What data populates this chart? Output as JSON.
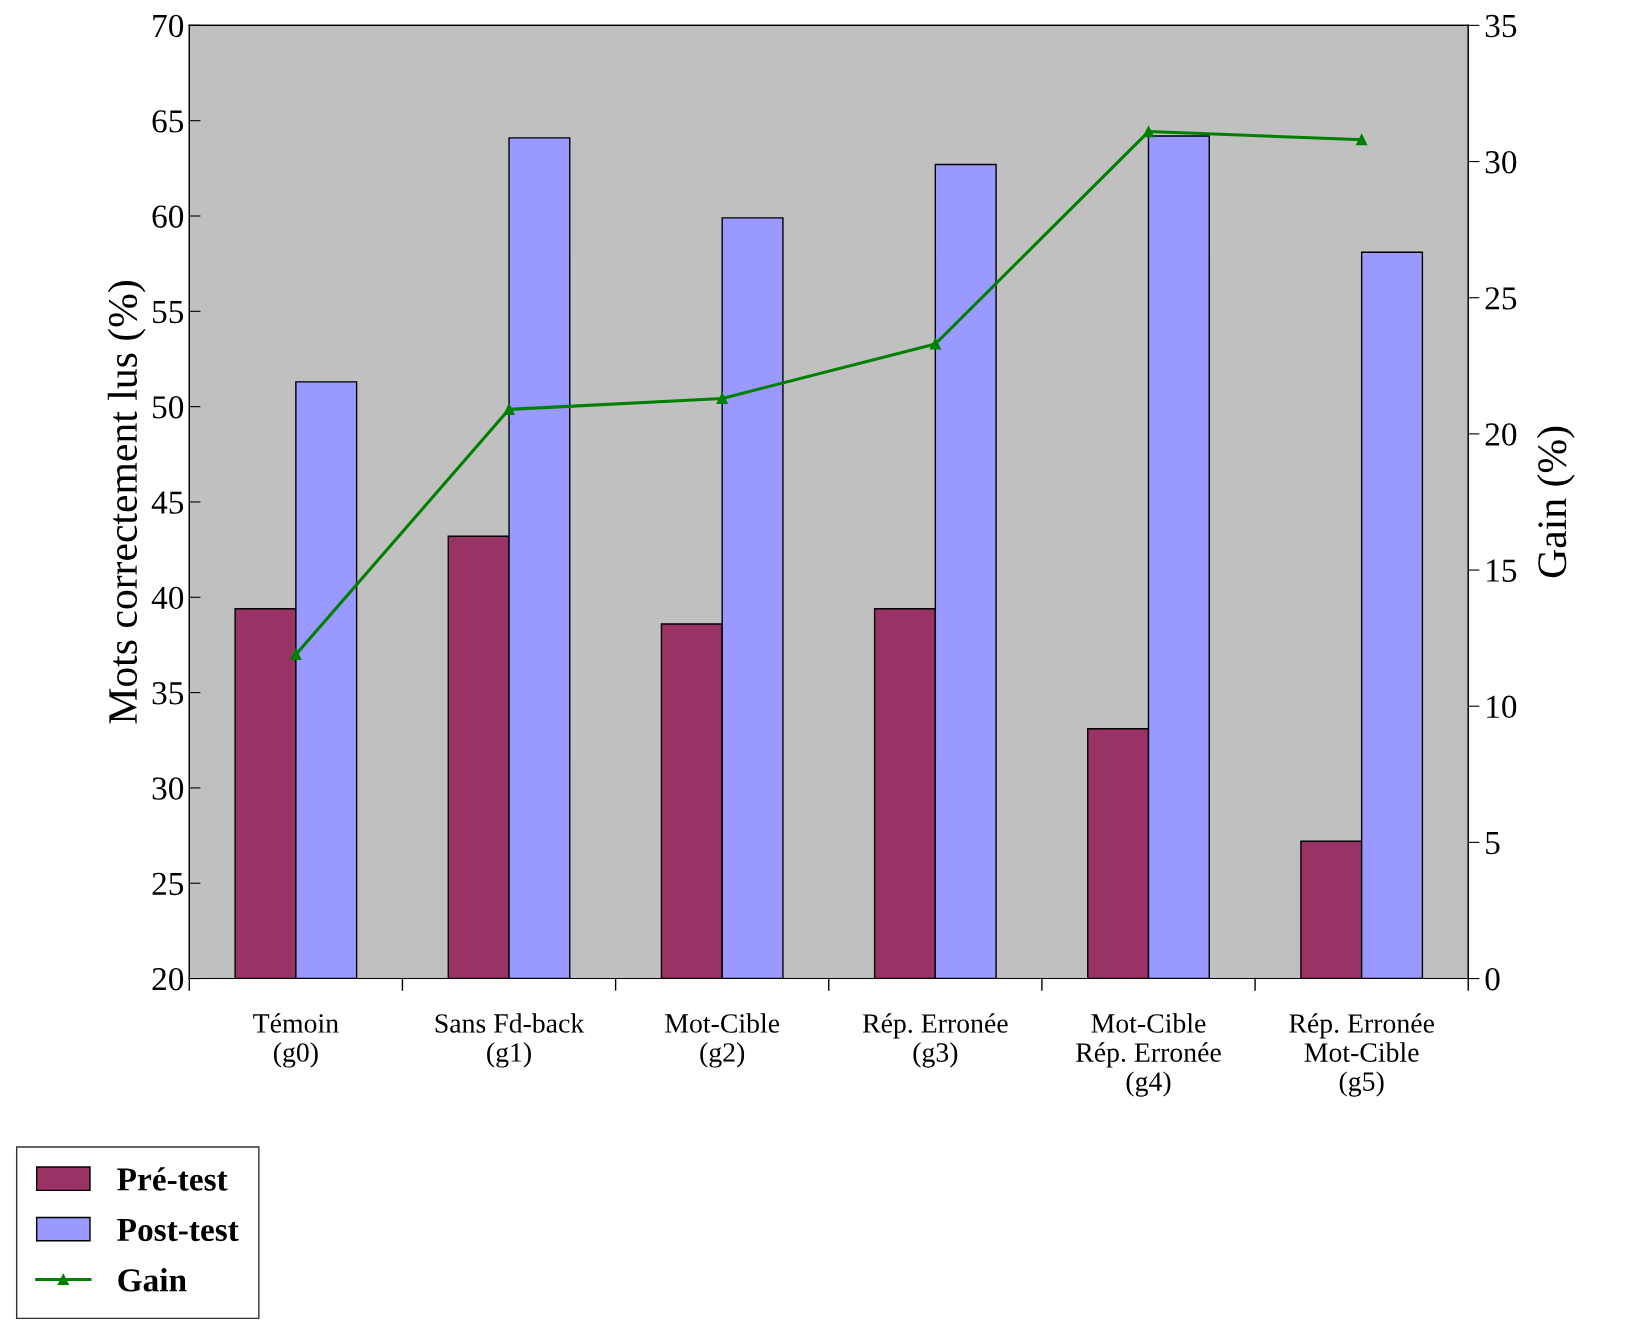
{
  "chart_data": {
    "type": "bar",
    "categories": [
      "Témoin\n(g0)",
      "Sans Fd-back\n(g1)",
      "Mot-Cible\n(g2)",
      "Rép. Erronée\n(g3)",
      "Mot-Cible\nRép. Erronée\n(g4)",
      "Rép. Erronée\nMot-Cible\n(g5)"
    ],
    "series": [
      {
        "name": "Pré-test",
        "color": "#993366",
        "values": [
          39.4,
          43.2,
          38.6,
          39.4,
          33.1,
          27.2
        ]
      },
      {
        "name": "Post-test",
        "color": "#9999ff",
        "values": [
          51.3,
          64.1,
          59.9,
          62.7,
          64.2,
          58.1
        ]
      },
      {
        "name": "Gain",
        "type": "line",
        "axis": "y2",
        "color": "#008000",
        "marker": "triangle",
        "values": [
          11.9,
          20.9,
          21.3,
          23.3,
          31.1,
          30.8
        ]
      }
    ],
    "ylabel": "Mots correctement lus (%)",
    "y2label": "Gain (%)",
    "ylim": [
      20,
      70
    ],
    "yticks": [
      20,
      25,
      30,
      35,
      40,
      45,
      50,
      55,
      60,
      65,
      70
    ],
    "y2lim": [
      0,
      35
    ],
    "y2ticks": [
      0,
      5,
      10,
      15,
      20,
      25,
      30,
      35
    ],
    "grid": false,
    "legend": "bottom left"
  }
}
